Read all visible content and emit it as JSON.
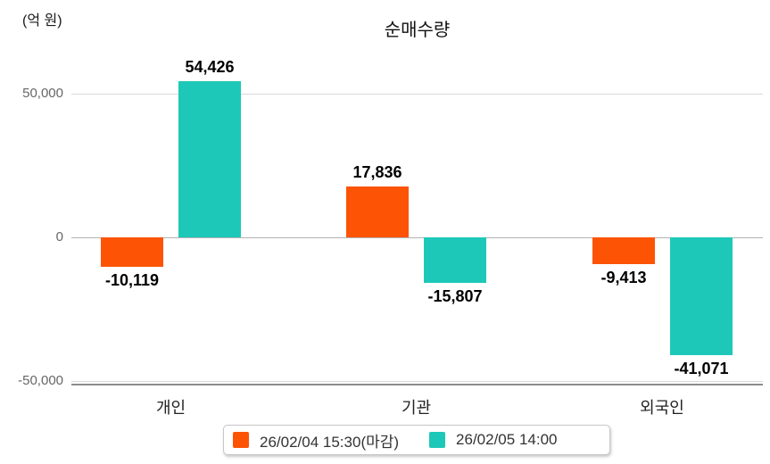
{
  "chart_data": {
    "type": "bar",
    "title": "순매수량",
    "unit_label": "(억 원)",
    "xlabel": "",
    "ylabel": "(억 원)",
    "categories": [
      "개인",
      "기관",
      "외국인"
    ],
    "series": [
      {
        "name": "26/02/04 15:30(마감)",
        "color": "#FC5404",
        "values": [
          -10119,
          17836,
          -9413
        ],
        "labels": [
          "-10,119",
          "17,836",
          "-9,413"
        ]
      },
      {
        "name": "26/02/05 14:00",
        "color": "#1EC8B8",
        "values": [
          54426,
          -15807,
          -41071
        ],
        "labels": [
          "54,426",
          "-15,807",
          "-41,071"
        ]
      }
    ],
    "yticks": [
      {
        "value": 50000,
        "label": "50,000"
      },
      {
        "value": 0,
        "label": "0"
      },
      {
        "value": -50000,
        "label": "-50,000"
      }
    ],
    "ylim": [
      -50000,
      62000
    ],
    "grid": "horizontal",
    "legend_position": "bottom"
  }
}
